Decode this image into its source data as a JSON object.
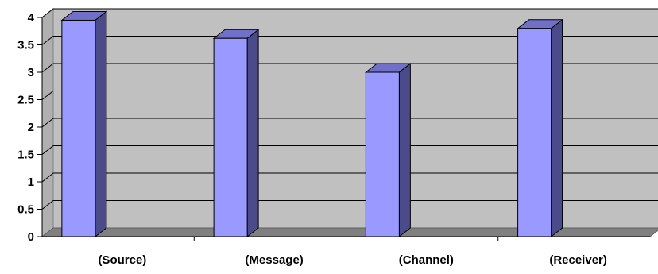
{
  "chart_data": {
    "type": "bar",
    "categories": [
      "(Source)",
      "(Message)",
      "(Channel)",
      "(Receiver)"
    ],
    "values": [
      3.95,
      3.62,
      3.0,
      3.8
    ],
    "ylim": [
      0,
      4
    ],
    "yticks": [
      "0",
      "0.5",
      "1",
      "1.5",
      "2",
      "2.5",
      "3",
      "3.5",
      "4"
    ],
    "grid": true,
    "legend": "none",
    "title": "",
    "xlabel": "",
    "ylabel": "",
    "colors": {
      "bar_front": "#9999ff",
      "bar_side": "#4b4b8c",
      "bar_top": "#7070c8",
      "bar_edge": "#000000",
      "wall": "#c0c0c0",
      "floor": "#808080",
      "gridline": "#000000"
    }
  }
}
